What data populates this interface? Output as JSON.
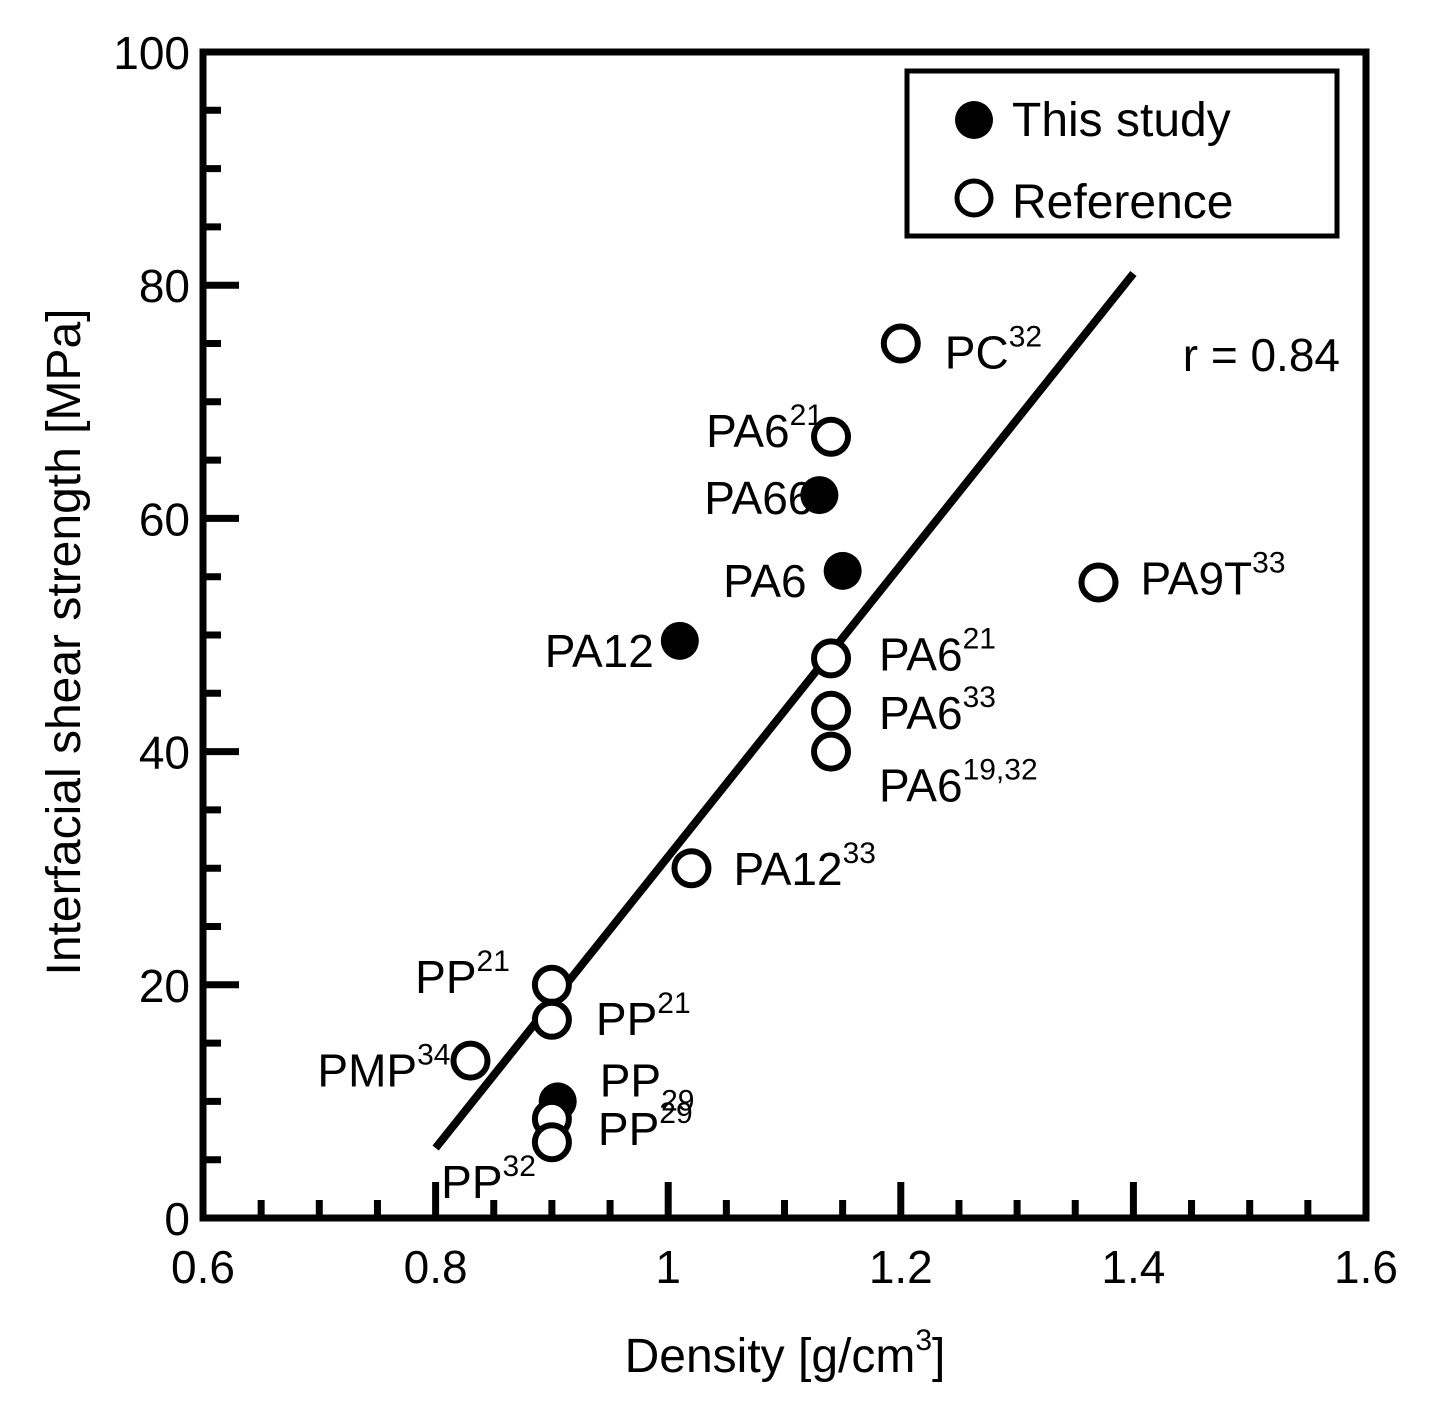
{
  "chart_data": {
    "type": "scatter",
    "xlabel": "Density [g/cm",
    "xlabel_sup": "3",
    "xlabel_end": "]",
    "ylabel": "Interfacial shear strength [MPa]",
    "xlim": [
      0.6,
      1.6
    ],
    "ylim": [
      0,
      100
    ],
    "x_ticks": [
      "0.6",
      "0.8",
      "1",
      "1.2",
      "1.4",
      "1.6"
    ],
    "y_ticks": [
      "0",
      "20",
      "40",
      "60",
      "80",
      "100"
    ],
    "legend": [
      {
        "name": "This study",
        "marker": "filled-circle"
      },
      {
        "name": "Reference",
        "marker": "open-circle"
      }
    ],
    "legend_position": "top-right",
    "series": [
      {
        "name": "This study",
        "points": [
          {
            "x": 1.13,
            "y": 62,
            "label": "PA66",
            "sup": "",
            "sub": ""
          },
          {
            "x": 1.15,
            "y": 55.5,
            "label": "PA6",
            "sup": "",
            "sub": ""
          },
          {
            "x": 1.01,
            "y": 49.5,
            "label": "PA12",
            "sup": "",
            "sub": ""
          },
          {
            "x": 0.905,
            "y": 10,
            "label": "PP",
            "sup": "",
            "sub": "29"
          }
        ]
      },
      {
        "name": "Reference",
        "points": [
          {
            "x": 1.2,
            "y": 75,
            "label": "PC",
            "sup": "32",
            "sub": ""
          },
          {
            "x": 1.14,
            "y": 67,
            "label": "PA6",
            "sup": "21",
            "sub": ""
          },
          {
            "x": 1.37,
            "y": 54.5,
            "label": "PA9T",
            "sup": "33",
            "sub": ""
          },
          {
            "x": 1.14,
            "y": 48,
            "label": "PA6",
            "sup": "21",
            "sub": ""
          },
          {
            "x": 1.14,
            "y": 43.5,
            "label": "PA6",
            "sup": "33",
            "sub": ""
          },
          {
            "x": 1.14,
            "y": 40,
            "label": "PA6",
            "sup": "19,32",
            "sub": ""
          },
          {
            "x": 1.02,
            "y": 30,
            "label": "PA12",
            "sup": "33",
            "sub": ""
          },
          {
            "x": 0.9,
            "y": 20,
            "label": "PP",
            "sup": "21",
            "sub": ""
          },
          {
            "x": 0.9,
            "y": 17,
            "label": "PP",
            "sup": "21",
            "sub": ""
          },
          {
            "x": 0.83,
            "y": 13.5,
            "label": "PMP",
            "sup": "34",
            "sub": ""
          },
          {
            "x": 0.9,
            "y": 8.5,
            "label": "PP",
            "sup": "29",
            "sub": ""
          },
          {
            "x": 0.9,
            "y": 6.5,
            "label": "PP",
            "sup": "32",
            "sub": ""
          }
        ]
      }
    ],
    "fit_line": {
      "x": [
        0.8,
        1.4
      ],
      "y": [
        6,
        81
      ]
    },
    "annotation": "r = 0.84"
  }
}
